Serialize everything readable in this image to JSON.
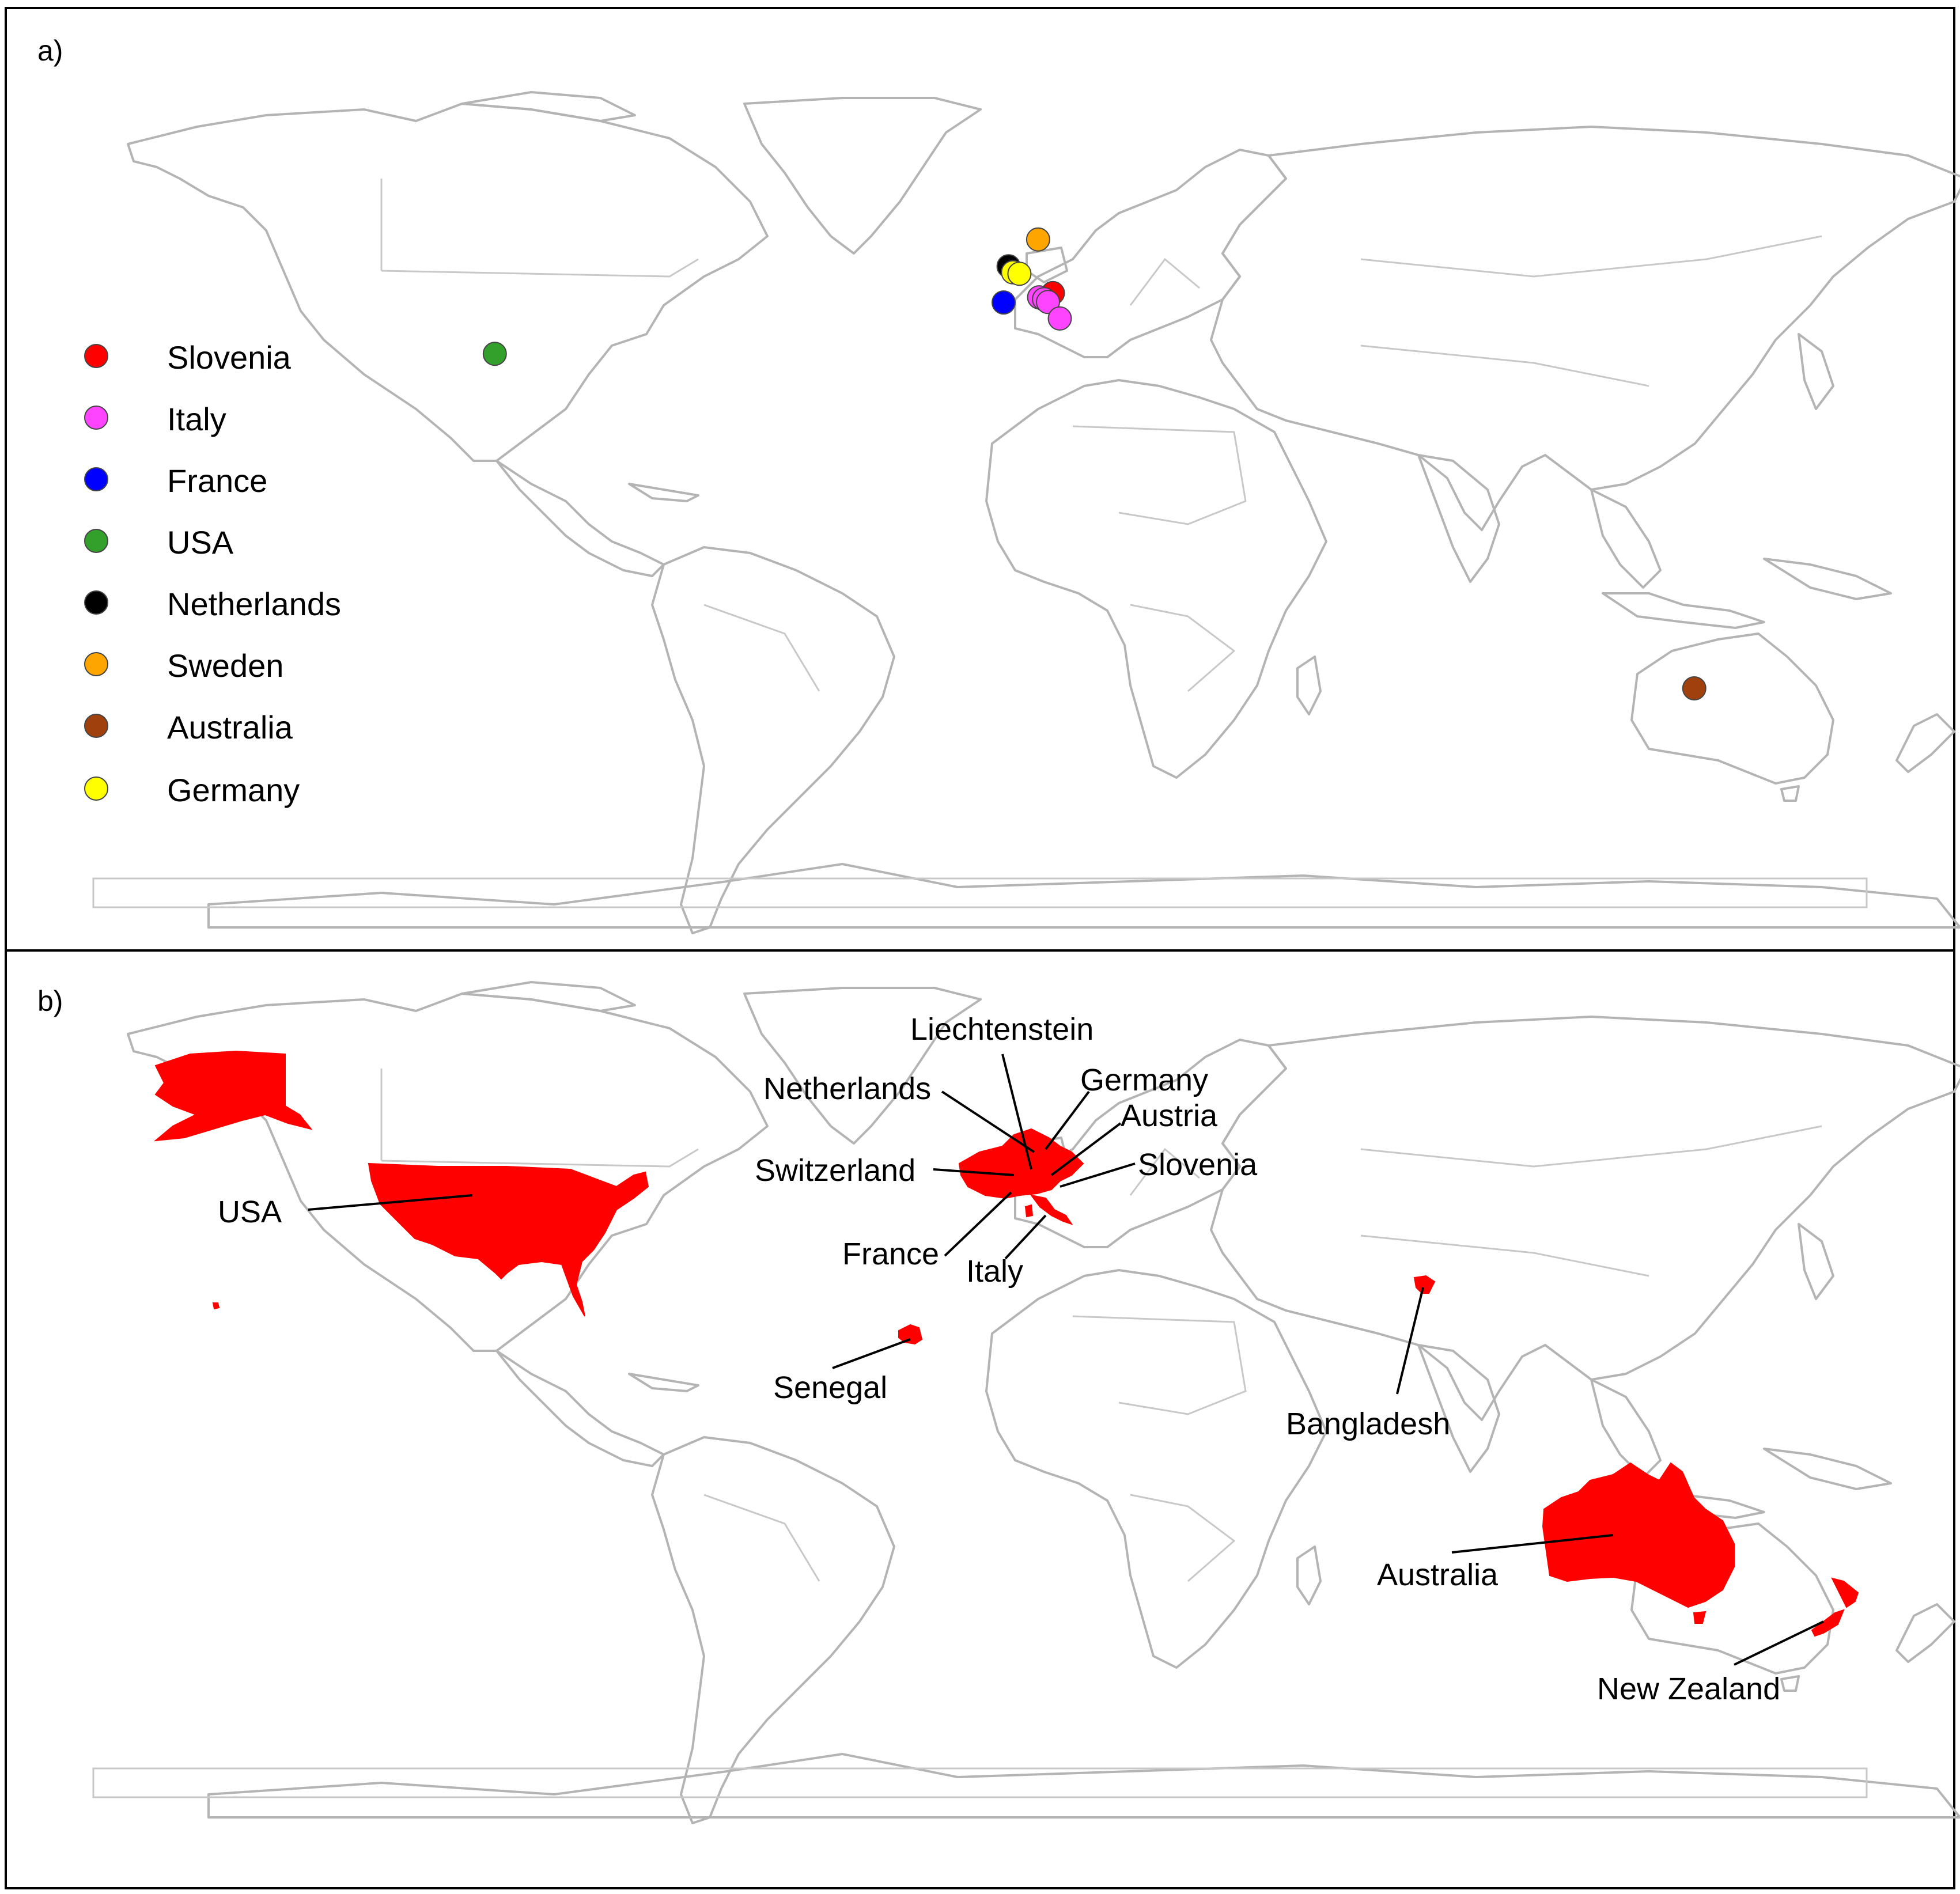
{
  "panel_a": {
    "label": "a)",
    "legend": [
      {
        "name": "Slovenia",
        "color": "#ff0000"
      },
      {
        "name": "Italy",
        "color": "#ff44ff"
      },
      {
        "name": "France",
        "color": "#0000ff"
      },
      {
        "name": "USA",
        "color": "#33a02c"
      },
      {
        "name": "Netherlands",
        "color": "#000000"
      },
      {
        "name": "Sweden",
        "color": "#ffa500"
      },
      {
        "name": "Australia",
        "color": "#a0410d"
      },
      {
        "name": "Germany",
        "color": "#ffff00"
      }
    ],
    "sites": [
      {
        "country": "Slovenia",
        "lon": 14.8,
        "lat": 46.2
      },
      {
        "country": "Italy",
        "lon": 12.0,
        "lat": 45.3
      },
      {
        "country": "Italy",
        "lon": 13.0,
        "lat": 44.9
      },
      {
        "country": "Italy",
        "lon": 13.8,
        "lat": 44.3
      },
      {
        "country": "Italy",
        "lon": 16.2,
        "lat": 40.8
      },
      {
        "country": "France",
        "lon": 4.8,
        "lat": 44.2
      },
      {
        "country": "USA",
        "lon": -98.5,
        "lat": 33.3
      },
      {
        "country": "Netherlands",
        "lon": 5.8,
        "lat": 51.9
      },
      {
        "country": "Sweden",
        "lon": 11.8,
        "lat": 57.6
      },
      {
        "country": "Germany",
        "lon": 6.7,
        "lat": 50.6
      },
      {
        "country": "Germany",
        "lon": 8.0,
        "lat": 50.3
      },
      {
        "country": "Australia",
        "lon": 145.0,
        "lat": -37.8
      }
    ],
    "map_colors": {
      "land_outline": "#b4b4b4",
      "background": "#ffffff"
    }
  },
  "panel_b": {
    "label": "b)",
    "highlight_color": "#ff0000",
    "countries": [
      {
        "name": "Liechtenstein"
      },
      {
        "name": "Netherlands"
      },
      {
        "name": "Germany"
      },
      {
        "name": "Austria"
      },
      {
        "name": "Switzerland"
      },
      {
        "name": "Slovenia"
      },
      {
        "name": "USA"
      },
      {
        "name": "France"
      },
      {
        "name": "Italy"
      },
      {
        "name": "Senegal"
      },
      {
        "name": "Bangladesh"
      },
      {
        "name": "Australia"
      },
      {
        "name": "New Zealand"
      }
    ]
  }
}
